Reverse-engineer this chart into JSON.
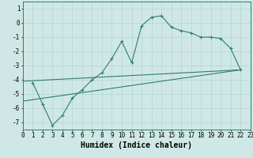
{
  "xlabel": "Humidex (Indice chaleur)",
  "ylabel": "",
  "bg_color": "#cfe8e5",
  "line_color": "#2e7d6e",
  "grid_color": "#b8d8d4",
  "xlim": [
    0,
    23
  ],
  "ylim": [
    -7.5,
    1.5
  ],
  "xticks": [
    0,
    1,
    2,
    3,
    4,
    5,
    6,
    7,
    8,
    9,
    10,
    11,
    12,
    13,
    14,
    15,
    16,
    17,
    18,
    19,
    20,
    21,
    22,
    23
  ],
  "yticks": [
    1,
    0,
    -1,
    -2,
    -3,
    -4,
    -5,
    -6,
    -7
  ],
  "curve_x": [
    1,
    2,
    3,
    4,
    5,
    6,
    7,
    8,
    9,
    10,
    11,
    12,
    13,
    14,
    15,
    16,
    17,
    18,
    19,
    20,
    21,
    22
  ],
  "curve_y": [
    -4.2,
    -5.7,
    -7.2,
    -6.5,
    -5.3,
    -4.7,
    -4.0,
    -3.5,
    -2.5,
    -1.3,
    -2.8,
    -0.2,
    0.4,
    0.5,
    -0.3,
    -0.55,
    -0.7,
    -1.0,
    -1.0,
    -1.1,
    -1.8,
    -3.3
  ],
  "line1_x": [
    0,
    22
  ],
  "line1_y": [
    -4.1,
    -3.3
  ],
  "line2_x": [
    0,
    22
  ],
  "line2_y": [
    -5.5,
    -3.3
  ],
  "fontsize_label": 7,
  "tick_fontsize": 5.5
}
